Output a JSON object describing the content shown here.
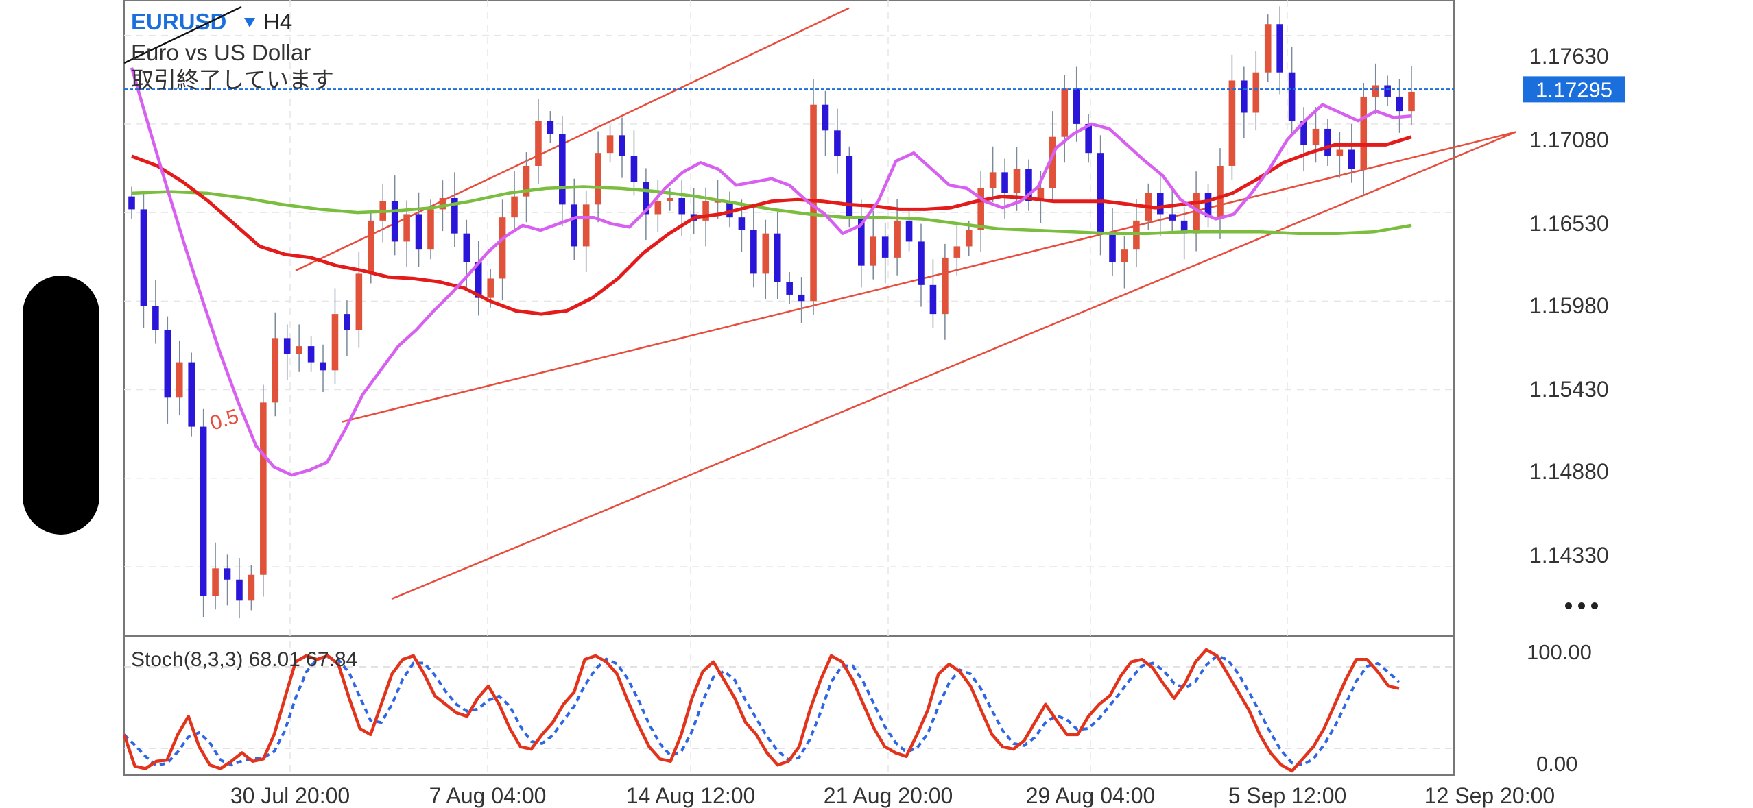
{
  "header": {
    "symbol": "EURUSD",
    "dropdown_icon": "triangle-down-icon",
    "timeframe": "H4",
    "description": "Euro vs US Dollar",
    "status": "取引終了しています"
  },
  "price_axis": {
    "ticks": [
      "1.17630",
      "1.17080",
      "1.16530",
      "1.15980",
      "1.15430",
      "1.14880",
      "1.14330"
    ],
    "current_price": "1.17295",
    "current_price_value": 1.17295,
    "more_icon": "more-dots-icon"
  },
  "time_axis": {
    "labels": [
      "30 Jul 20:00",
      "7 Aug 04:00",
      "14 Aug 12:00",
      "21 Aug 20:00",
      "29 Aug 04:00",
      "5 Sep 12:00",
      "12 Sep 20:00"
    ]
  },
  "channel": {
    "fib_label": "0.5"
  },
  "stoch": {
    "label": "Stoch(8,3,3) 68.01 67.84",
    "ticks": [
      "100.00",
      "0.00"
    ]
  },
  "colors": {
    "bull": "#e0533a",
    "bear": "#2a16d8",
    "wick": "#7a8a9a",
    "channel": "#e84c3d",
    "ma_fast": "#d760f0",
    "ma_mid": "#e31b1b",
    "ma_slow": "#7bbd3f",
    "price_line": "#1a6fdc",
    "stoch_main": "#e2341d",
    "stoch_signal": "#2f66e3"
  },
  "chart_data": {
    "type": "candlestick",
    "symbol": "EURUSD",
    "timeframe": "H4",
    "ylim": [
      1.139,
      1.1785
    ],
    "current_price": 1.17295,
    "closes": [
      1.1655,
      1.1595,
      1.158,
      1.1538,
      1.156,
      1.152,
      1.1415,
      1.1432,
      1.1425,
      1.1412,
      1.1428,
      1.1535,
      1.1575,
      1.1565,
      1.157,
      1.156,
      1.1555,
      1.159,
      1.158,
      1.1615,
      1.1648,
      1.166,
      1.1635,
      1.1652,
      1.163,
      1.1655,
      1.1662,
      1.164,
      1.1622,
      1.16,
      1.1612,
      1.165,
      1.1663,
      1.1682,
      1.171,
      1.1702,
      1.1658,
      1.1632,
      1.1658,
      1.169,
      1.1701,
      1.1688,
      1.1672,
      1.1652,
      1.166,
      1.1662,
      1.1652,
      1.1648,
      1.166,
      1.166,
      1.165,
      1.1642,
      1.1615,
      1.164,
      1.161,
      1.1602,
      1.1598,
      1.172,
      1.1704,
      1.1688,
      1.165,
      1.162,
      1.1638,
      1.1625,
      1.1648,
      1.1635,
      1.1608,
      1.159,
      1.1625,
      1.1632,
      1.1642,
      1.1668,
      1.1678,
      1.1665,
      1.168,
      1.166,
      1.1668,
      1.17,
      1.173,
      1.1708,
      1.169,
      1.164,
      1.1622,
      1.163,
      1.1648,
      1.1665,
      1.1652,
      1.1648,
      1.164,
      1.1665,
      1.165,
      1.1682,
      1.1735,
      1.1715,
      1.174,
      1.177,
      1.174,
      1.171,
      1.1695,
      1.1705,
      1.1688,
      1.1692,
      1.168,
      1.1725,
      1.1732,
      1.1725,
      1.1716,
      1.1728
    ],
    "ma_fast": [
      1.1743,
      1.1705,
      1.1668,
      1.1632,
      1.1598,
      1.1565,
      1.1535,
      1.1508,
      1.1495,
      1.149,
      1.1493,
      1.1498,
      1.1518,
      1.154,
      1.1555,
      1.157,
      1.158,
      1.1592,
      1.1603,
      1.1615,
      1.1628,
      1.1638,
      1.1645,
      1.1642,
      1.1646,
      1.165,
      1.165,
      1.1646,
      1.1644,
      1.1655,
      1.1668,
      1.1678,
      1.1684,
      1.168,
      1.167,
      1.1672,
      1.1674,
      1.167,
      1.166,
      1.1652,
      1.164,
      1.1645,
      1.166,
      1.1685,
      1.169,
      1.168,
      1.167,
      1.1668,
      1.166,
      1.1656,
      1.166,
      1.1669,
      1.1693,
      1.1702,
      1.1708,
      1.1705,
      1.1695,
      1.1685,
      1.1676,
      1.1661,
      1.1654,
      1.1649,
      1.1652,
      1.1665,
      1.168,
      1.1698,
      1.171,
      1.172,
      1.1715,
      1.171,
      1.1716,
      1.1712,
      1.1713
    ],
    "ma_mid": [
      1.1688,
      1.1682,
      1.1672,
      1.166,
      1.1646,
      1.1632,
      1.1627,
      1.1625,
      1.162,
      1.1617,
      1.1613,
      1.1612,
      1.161,
      1.1606,
      1.1598,
      1.1592,
      1.159,
      1.1592,
      1.16,
      1.1612,
      1.1628,
      1.164,
      1.165,
      1.1652,
      1.1656,
      1.166,
      1.1661,
      1.166,
      1.1658,
      1.1657,
      1.1655,
      1.1655,
      1.1656,
      1.166,
      1.1663,
      1.1662,
      1.166,
      1.166,
      1.166,
      1.1658,
      1.1656,
      1.1658,
      1.166,
      1.1665,
      1.1674,
      1.1684,
      1.169,
      1.1695,
      1.1695,
      1.1695,
      1.17
    ],
    "ma_slow": [
      1.1665,
      1.1666,
      1.1665,
      1.1662,
      1.1658,
      1.1655,
      1.1653,
      1.1654,
      1.1656,
      1.166,
      1.1665,
      1.1668,
      1.1669,
      1.1668,
      1.1666,
      1.1663,
      1.1659,
      1.1655,
      1.1652,
      1.165,
      1.165,
      1.1649,
      1.1646,
      1.1643,
      1.1642,
      1.1641,
      1.164,
      1.164,
      1.1641,
      1.1641,
      1.1641,
      1.164,
      1.164,
      1.1641,
      1.1645
    ],
    "channel_lines": [
      {
        "name": "upper",
        "from": [
          1,
          1.1617
        ],
        "to": [
          20,
          1.178
        ]
      },
      {
        "name": "middle",
        "from": [
          2,
          1.1523
        ],
        "to": [
          40,
          1.1703
        ]
      },
      {
        "name": "lower",
        "from": [
          3,
          1.1413
        ],
        "to": [
          40,
          1.1703
        ]
      }
    ],
    "stochastic": {
      "range": [
        0,
        100
      ],
      "main": [
        30,
        4,
        2,
        8,
        9,
        30,
        45,
        20,
        5,
        2,
        8,
        15,
        8,
        10,
        30,
        60,
        90,
        95,
        92,
        95,
        88,
        60,
        35,
        30,
        55,
        80,
        92,
        95,
        80,
        62,
        55,
        48,
        45,
        60,
        70,
        55,
        35,
        20,
        18,
        30,
        40,
        55,
        65,
        92,
        95,
        90,
        80,
        58,
        38,
        20,
        10,
        8,
        30,
        60,
        82,
        90,
        75,
        60,
        40,
        30,
        15,
        5,
        8,
        20,
        50,
        75,
        95,
        90,
        75,
        55,
        35,
        20,
        15,
        12,
        30,
        50,
        80,
        88,
        82,
        70,
        50,
        30,
        20,
        18,
        25,
        40,
        55,
        42,
        30,
        30,
        45,
        55,
        62,
        78,
        90,
        92,
        85,
        72,
        60,
        72,
        90,
        100,
        95,
        80,
        65,
        50,
        30,
        15,
        5,
        0,
        10,
        20,
        35,
        55,
        75,
        92,
        92,
        82,
        70,
        68
      ]
    },
    "ylabel": "",
    "xlabel": ""
  }
}
